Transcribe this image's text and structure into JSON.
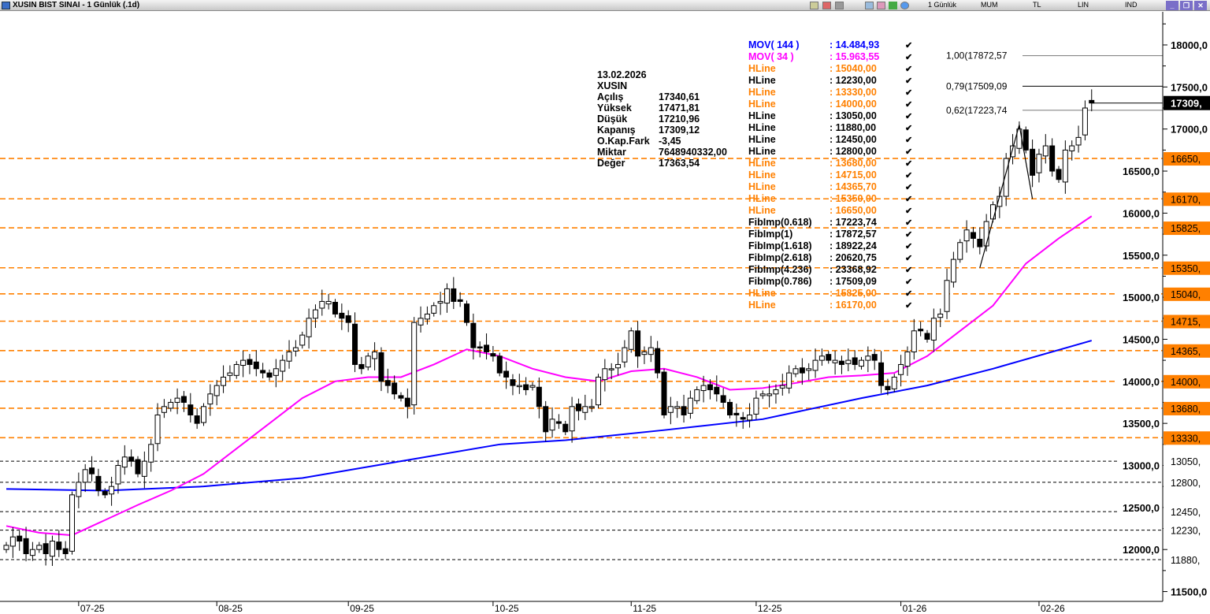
{
  "window": {
    "title": "XUSIN BIST SINAI - 1 Günlük (.1d)",
    "toolbar": {
      "period": "1 Günlük",
      "style": "MUM",
      "currency": "TL",
      "scale": "LIN",
      "ind": "IND"
    }
  },
  "info": {
    "date": "13.02.2026",
    "symbol": "XUSIN",
    "rows": [
      {
        "k": "Açılış",
        "v": "17340,61"
      },
      {
        "k": "Yüksek",
        "v": "17471,81"
      },
      {
        "k": "Düşük",
        "v": "17210,96"
      },
      {
        "k": "Kapanış",
        "v": "17309,12"
      },
      {
        "k": "O.Kap.Fark",
        "v": "-3,45"
      },
      {
        "k": "Miktar",
        "v": "7648940332,00"
      },
      {
        "k": "Değer",
        "v": "17363,54"
      }
    ]
  },
  "legend": [
    {
      "n": "MOV( 144 )",
      "v": ": 14.484,93",
      "color": "#0000ff"
    },
    {
      "n": "MOV( 34 )",
      "v": ": 15.963,55",
      "color": "#ff00ff"
    },
    {
      "n": "HLine",
      "v": ": 15040,00",
      "color": "#ff8000"
    },
    {
      "n": "HLine",
      "v": ": 12230,00",
      "color": "#000000"
    },
    {
      "n": "HLine",
      "v": ": 13330,00",
      "color": "#ff8000"
    },
    {
      "n": "HLine",
      "v": ": 14000,00",
      "color": "#ff8000"
    },
    {
      "n": "HLine",
      "v": ": 13050,00",
      "color": "#000000"
    },
    {
      "n": "HLine",
      "v": ": 11880,00",
      "color": "#000000"
    },
    {
      "n": "HLine",
      "v": ": 12450,00",
      "color": "#000000"
    },
    {
      "n": "HLine",
      "v": ": 12800,00",
      "color": "#000000"
    },
    {
      "n": "HLine",
      "v": ": 13680,00",
      "color": "#ff8000"
    },
    {
      "n": "HLine",
      "v": ": 14715,00",
      "color": "#ff8000"
    },
    {
      "n": "HLine",
      "v": ": 14365,70",
      "color": "#ff8000"
    },
    {
      "n": "HLine",
      "v": ": 15350,00",
      "color": "#ff8000"
    },
    {
      "n": "HLine",
      "v": ": 16650,00",
      "color": "#ff8000"
    },
    {
      "n": "FibImp(0.618)",
      "v": ": 17223,74",
      "color": "#000000"
    },
    {
      "n": "FibImp(1)",
      "v": ": 17872,57",
      "color": "#000000"
    },
    {
      "n": "FibImp(1.618)",
      "v": ": 18922,24",
      "color": "#000000"
    },
    {
      "n": "FibImp(2.618)",
      "v": ": 20620,75",
      "color": "#000000"
    },
    {
      "n": "FibImp(4.236)",
      "v": ": 23368,92",
      "color": "#000000"
    },
    {
      "n": "FibImp(0.786)",
      "v": ": 17509,09",
      "color": "#000000"
    },
    {
      "n": "HLine",
      "v": ": 15825,00",
      "color": "#ff8000"
    },
    {
      "n": "HLine",
      "v": ": 16170,00",
      "color": "#ff8000"
    }
  ],
  "check": "✔",
  "chart_data": {
    "type": "candlestick",
    "ylim": [
      11400,
      18400
    ],
    "yticks": [
      11500,
      12000,
      12500,
      13000,
      13500,
      14000,
      14500,
      15000,
      15500,
      16000,
      16500,
      17000,
      17500,
      18000
    ],
    "ytick_labels": [
      "11500,0",
      "12000,0",
      "12500,0",
      "13000,0",
      "13500,0",
      "14000,0",
      "14500,0",
      "15000,0",
      "15500,0",
      "16000,0",
      "16500,0",
      "17000,0",
      "17500,0",
      "18000,0"
    ],
    "xticks": [
      {
        "i": 11,
        "label": "07-25"
      },
      {
        "i": 32,
        "label": "08-25"
      },
      {
        "i": 52,
        "label": "09-25"
      },
      {
        "i": 74,
        "label": "10-25"
      },
      {
        "i": 95,
        "label": "11-25"
      },
      {
        "i": 114,
        "label": "12-25"
      },
      {
        "i": 136,
        "label": "01-26"
      },
      {
        "i": 157,
        "label": "02-26"
      }
    ],
    "closes": [
      12050,
      12150,
      12100,
      11950,
      12000,
      12050,
      11950,
      12100,
      12000,
      11950,
      12650,
      12800,
      12950,
      12900,
      12700,
      12650,
      12750,
      13000,
      13100,
      13050,
      12900,
      13050,
      13250,
      13600,
      13700,
      13750,
      13800,
      13750,
      13600,
      13500,
      13700,
      13850,
      13950,
      14050,
      14100,
      14200,
      14250,
      14200,
      14150,
      14100,
      14050,
      14150,
      14250,
      14350,
      14400,
      14550,
      14750,
      14850,
      14950,
      14950,
      14800,
      14750,
      14700,
      14200,
      14150,
      14300,
      14350,
      14000,
      13950,
      13850,
      13800,
      13700,
      14700,
      14750,
      14800,
      14900,
      14950,
      15100,
      14950,
      14950,
      14700,
      14400,
      14400,
      14350,
      14300,
      14100,
      14050,
      13950,
      13950,
      13900,
      13950,
      13700,
      13400,
      13550,
      13500,
      13400,
      13700,
      13650,
      13700,
      13700,
      14050,
      14150,
      14150,
      14200,
      14400,
      14600,
      14300,
      14350,
      14400,
      14100,
      13600,
      13700,
      13700,
      13600,
      13800,
      13900,
      13950,
      13900,
      13850,
      13750,
      13600,
      13600,
      13550,
      13600,
      13800,
      13850,
      13850,
      13900,
      13950,
      14100,
      14150,
      14100,
      14150,
      14250,
      14300,
      14250,
      14250,
      14200,
      14250,
      14200,
      14250,
      14300,
      14250,
      13950,
      13900,
      14050,
      14200,
      14350,
      14600,
      14600,
      14500,
      14750,
      14800,
      15200,
      15450,
      15650,
      15800,
      15700,
      15600,
      15900,
      16100,
      16200,
      16650,
      16800,
      17000,
      16750,
      16450,
      16700,
      16800,
      16500,
      16400,
      16750,
      16800,
      16900,
      17250,
      17309.12
    ],
    "last_candle": {
      "open": 17340.61,
      "high": 17471.81,
      "low": 17210.96,
      "close": 17309.12
    },
    "last_price_label": "17309,",
    "series": [
      {
        "name": "MOV( 144 )",
        "color": "#0000ff",
        "points": [
          [
            0,
            12720
          ],
          [
            15,
            12700
          ],
          [
            30,
            12750
          ],
          [
            45,
            12850
          ],
          [
            60,
            13050
          ],
          [
            75,
            13250
          ],
          [
            85,
            13300
          ],
          [
            100,
            13420
          ],
          [
            115,
            13550
          ],
          [
            130,
            13800
          ],
          [
            140,
            13950
          ],
          [
            150,
            14150
          ],
          [
            165,
            14485
          ]
        ]
      },
      {
        "name": "MOV( 34 )",
        "color": "#ff00ff",
        "points": [
          [
            0,
            12280
          ],
          [
            5,
            12200
          ],
          [
            10,
            12170
          ],
          [
            15,
            12350
          ],
          [
            20,
            12530
          ],
          [
            25,
            12700
          ],
          [
            30,
            12900
          ],
          [
            35,
            13200
          ],
          [
            40,
            13500
          ],
          [
            45,
            13800
          ],
          [
            50,
            14000
          ],
          [
            55,
            14050
          ],
          [
            60,
            14050
          ],
          [
            65,
            14200
          ],
          [
            70,
            14380
          ],
          [
            75,
            14300
          ],
          [
            80,
            14150
          ],
          [
            85,
            14050
          ],
          [
            90,
            14000
          ],
          [
            95,
            14120
          ],
          [
            100,
            14150
          ],
          [
            105,
            14050
          ],
          [
            110,
            13900
          ],
          [
            115,
            13920
          ],
          [
            120,
            13980
          ],
          [
            125,
            14050
          ],
          [
            130,
            14070
          ],
          [
            135,
            14100
          ],
          [
            140,
            14300
          ],
          [
            145,
            14600
          ],
          [
            150,
            14900
          ],
          [
            155,
            15400
          ],
          [
            160,
            15700
          ],
          [
            165,
            15964
          ]
        ]
      }
    ],
    "hlines": [
      {
        "value": 16650,
        "label": "16650,",
        "color": "#ff8000"
      },
      {
        "value": 16170,
        "label": "16170,",
        "color": "#ff8000"
      },
      {
        "value": 15825,
        "label": "15825,",
        "color": "#ff8000"
      },
      {
        "value": 15350,
        "label": "15350,",
        "color": "#ff8000"
      },
      {
        "value": 15040,
        "label": "15040,",
        "color": "#ff8000"
      },
      {
        "value": 14715,
        "label": "14715,",
        "color": "#ff8000"
      },
      {
        "value": 14365.7,
        "label": "14365,",
        "color": "#ff8000"
      },
      {
        "value": 14000,
        "label": "14000,",
        "color": "#ff8000"
      },
      {
        "value": 13680,
        "label": "13680,",
        "color": "#ff8000"
      },
      {
        "value": 13330,
        "label": "13330,",
        "color": "#ff8000"
      },
      {
        "value": 13050,
        "label": "13050,",
        "color": "#000000"
      },
      {
        "value": 12800,
        "label": "12800,",
        "color": "#000000"
      },
      {
        "value": 12450,
        "label": "12450,",
        "color": "#000000"
      },
      {
        "value": 12230,
        "label": "12230,",
        "color": "#000000"
      },
      {
        "value": 11880,
        "label": "11880,",
        "color": "#000000"
      }
    ],
    "fib_lines": [
      {
        "value": 17872.57,
        "label": "1,00(17872,57"
      },
      {
        "value": 17509.09,
        "label": "0,79(17509,09"
      },
      {
        "value": 17223.74,
        "label": "0,62(17223,74"
      }
    ],
    "fib_swing": [
      [
        148,
        15350
      ],
      [
        154,
        17050
      ],
      [
        156,
        16170
      ]
    ]
  }
}
